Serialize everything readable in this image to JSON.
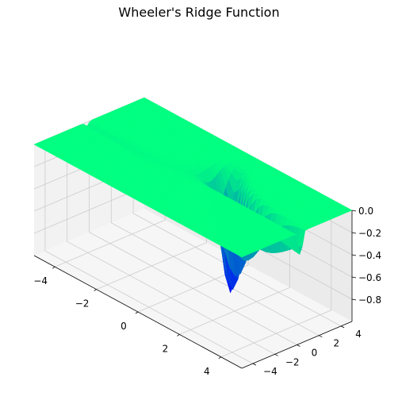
{
  "chart_data": {
    "type": "surface",
    "title": "Wheeler's Ridge Function",
    "xlabel": "",
    "ylabel": "",
    "zlabel": "",
    "x_range": [
      -5,
      5
    ],
    "y_range": [
      -5,
      5
    ],
    "z_range": [
      -1,
      0
    ],
    "x_ticks": [
      -4,
      -2,
      0,
      2,
      4
    ],
    "y_ticks": [
      -4,
      -2,
      0,
      2,
      4
    ],
    "z_ticks": [
      0.0,
      -0.2,
      -0.4,
      -0.6,
      -0.8
    ],
    "x_tick_labels": [
      "−4",
      "−2",
      "0",
      "2",
      "4"
    ],
    "y_tick_labels": [
      "−4",
      "−2",
      "0",
      "2",
      "4"
    ],
    "z_tick_labels": [
      "0.0",
      "−0.2",
      "−0.4",
      "−0.6",
      "−0.8"
    ],
    "minimum": {
      "x": 1,
      "y": 1.5,
      "z": -1
    },
    "colormap": "winter",
    "colors": {
      "high": "#00ff80",
      "low": "#0000ff",
      "pane": "#f2f2f2",
      "grid": "#cccccc"
    },
    "grid": true
  }
}
